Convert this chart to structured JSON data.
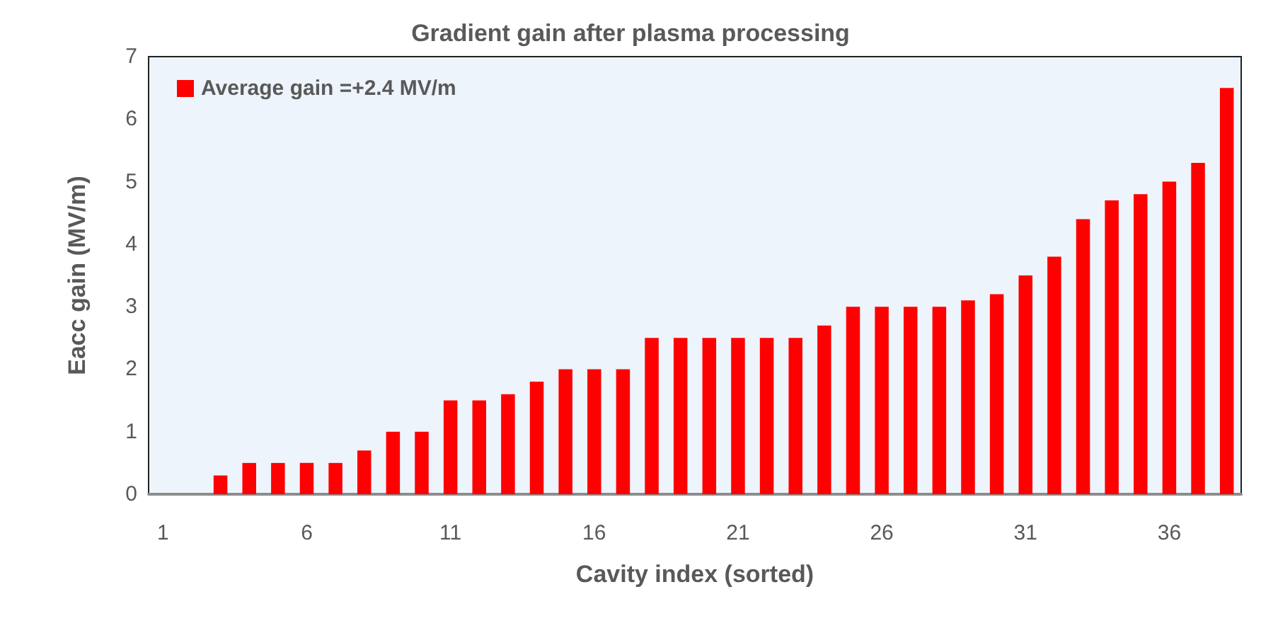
{
  "chart_data": {
    "type": "bar",
    "title": "Gradient gain after plasma processing",
    "xlabel": "Cavity index (sorted)",
    "ylabel": "Eacc gain (MV/m)",
    "categories": [
      "1",
      null,
      null,
      null,
      null,
      "6",
      null,
      null,
      null,
      null,
      "11",
      null,
      null,
      null,
      null,
      "16",
      null,
      null,
      null,
      null,
      "21",
      null,
      null,
      null,
      null,
      "26",
      null,
      null,
      null,
      null,
      "31",
      null,
      null,
      null,
      null,
      "36",
      null,
      null
    ],
    "series": [
      {
        "name": "Average gain =+2.4 MV/m",
        "color": "#ff0000",
        "values": [
          0,
          0,
          0.3,
          0.5,
          0.5,
          0.5,
          0.5,
          0.7,
          1.0,
          1.0,
          1.5,
          1.5,
          1.6,
          1.8,
          2.0,
          2.0,
          2.0,
          2.5,
          2.5,
          2.5,
          2.5,
          2.5,
          2.5,
          2.7,
          3.0,
          3.0,
          3.0,
          3.0,
          3.1,
          3.2,
          3.5,
          3.8,
          4.4,
          4.7,
          4.8,
          5.0,
          5.3,
          6.5
        ]
      }
    ],
    "ylim": [
      0,
      7
    ],
    "yticks": [
      0,
      1,
      2,
      3,
      4,
      5,
      6,
      7
    ],
    "grid": false,
    "legend": "top left"
  }
}
